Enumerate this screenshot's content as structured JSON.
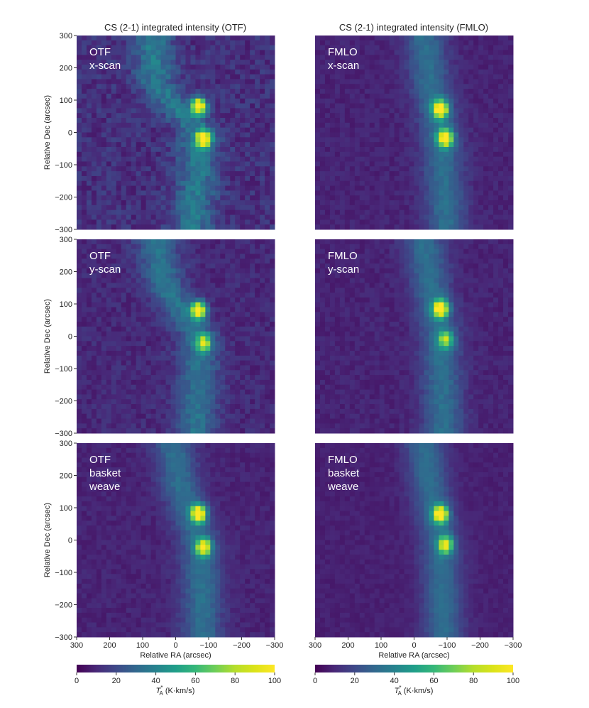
{
  "figure": {
    "titles": {
      "left": "CS (2-1) integrated intensity (OTF)",
      "right": "CS (2-1) integrated intensity (FMLO)"
    },
    "ylabel": "Relative Dec (arcsec)",
    "xlabel": "Relative RA (arcsec)",
    "colorbar": {
      "label_main": "T",
      "label_sup": "*",
      "label_sub": "A",
      "label_units": " (K·km/s)",
      "ticks": [
        "0",
        "20",
        "40",
        "60",
        "80",
        "100"
      ],
      "colormap": "viridis"
    },
    "x_ticks": [
      "300",
      "200",
      "100",
      "0",
      "−100",
      "−200",
      "−300"
    ],
    "y_ticks": [
      "300",
      "200",
      "100",
      "0",
      "−100",
      "−200",
      "−300"
    ]
  },
  "chart_data": [
    {
      "type": "heatmap",
      "row": 0,
      "col": 0,
      "label_lines": [
        "OTF",
        "x-scan"
      ],
      "title": "CS (2-1) integrated intensity (OTF)",
      "xlabel": "",
      "ylabel": "Relative Dec (arcsec)",
      "xlim": [
        300,
        -300
      ],
      "ylim": [
        -300,
        300
      ],
      "color_range": [
        0,
        100
      ],
      "filament_ra_center_at_dec": [
        [
          300,
          70
        ],
        [
          150,
          60
        ],
        [
          0,
          -70
        ],
        [
          -150,
          -65
        ],
        [
          -300,
          -50
        ]
      ],
      "peaks": [
        {
          "ra": -70,
          "dec": 82,
          "value": 100
        },
        {
          "ra": -85,
          "dec": -20,
          "value": 92
        }
      ],
      "noise": "high"
    },
    {
      "type": "heatmap",
      "row": 0,
      "col": 1,
      "label_lines": [
        "FMLO",
        "x-scan"
      ],
      "title": "CS (2-1) integrated intensity (FMLO)",
      "xlabel": "",
      "ylabel": "",
      "xlim": [
        300,
        -300
      ],
      "ylim": [
        -300,
        300
      ],
      "color_range": [
        0,
        100
      ],
      "filament_ra_center_at_dec": [
        [
          300,
          -30
        ],
        [
          150,
          -50
        ],
        [
          0,
          -80
        ],
        [
          -150,
          -90
        ],
        [
          -300,
          -100
        ]
      ],
      "peaks": [
        {
          "ra": -80,
          "dec": 72,
          "value": 100
        },
        {
          "ra": -95,
          "dec": -18,
          "value": 95
        }
      ],
      "noise": "low"
    },
    {
      "type": "heatmap",
      "row": 1,
      "col": 0,
      "label_lines": [
        "OTF",
        "y-scan"
      ],
      "xlabel": "",
      "ylabel": "Relative Dec (arcsec)",
      "xlim": [
        300,
        -300
      ],
      "ylim": [
        -300,
        300
      ],
      "color_range": [
        0,
        100
      ],
      "filament_ra_center_at_dec": [
        [
          300,
          60
        ],
        [
          150,
          30
        ],
        [
          0,
          -70
        ],
        [
          -150,
          -70
        ],
        [
          -300,
          -60
        ]
      ],
      "peaks": [
        {
          "ra": -70,
          "dec": 80,
          "value": 100
        },
        {
          "ra": -85,
          "dec": -20,
          "value": 62
        }
      ],
      "noise": "medium"
    },
    {
      "type": "heatmap",
      "row": 1,
      "col": 1,
      "label_lines": [
        "FMLO",
        "y-scan"
      ],
      "xlabel": "",
      "ylabel": "",
      "xlim": [
        300,
        -300
      ],
      "ylim": [
        -300,
        300
      ],
      "color_range": [
        0,
        100
      ],
      "filament_ra_center_at_dec": [
        [
          300,
          -30
        ],
        [
          150,
          -50
        ],
        [
          0,
          -80
        ],
        [
          -150,
          -85
        ],
        [
          -300,
          -90
        ]
      ],
      "peaks": [
        {
          "ra": -80,
          "dec": 85,
          "value": 100
        },
        {
          "ra": -95,
          "dec": -10,
          "value": 58
        }
      ],
      "noise": "low"
    },
    {
      "type": "heatmap",
      "row": 2,
      "col": 0,
      "label_lines": [
        "OTF",
        "basket",
        "weave"
      ],
      "xlabel": "Relative RA (arcsec)",
      "ylabel": "Relative Dec (arcsec)",
      "xlim": [
        300,
        -300
      ],
      "ylim": [
        -300,
        300
      ],
      "color_range": [
        0,
        100
      ],
      "filament_ra_center_at_dec": [
        [
          300,
          10
        ],
        [
          150,
          -20
        ],
        [
          0,
          -70
        ],
        [
          -150,
          -80
        ],
        [
          -300,
          -80
        ]
      ],
      "peaks": [
        {
          "ra": -70,
          "dec": 82,
          "value": 100
        },
        {
          "ra": -85,
          "dec": -22,
          "value": 82
        }
      ],
      "noise": "low"
    },
    {
      "type": "heatmap",
      "row": 2,
      "col": 1,
      "label_lines": [
        "FMLO",
        "basket",
        "weave"
      ],
      "xlabel": "Relative RA (arcsec)",
      "ylabel": "",
      "xlim": [
        300,
        -300
      ],
      "ylim": [
        -300,
        300
      ],
      "color_range": [
        0,
        100
      ],
      "filament_ra_center_at_dec": [
        [
          300,
          -30
        ],
        [
          150,
          -50
        ],
        [
          0,
          -80
        ],
        [
          -150,
          -85
        ],
        [
          -300,
          -90
        ]
      ],
      "peaks": [
        {
          "ra": -80,
          "dec": 80,
          "value": 100
        },
        {
          "ra": -95,
          "dec": -15,
          "value": 75
        }
      ],
      "noise": "very-low"
    }
  ]
}
